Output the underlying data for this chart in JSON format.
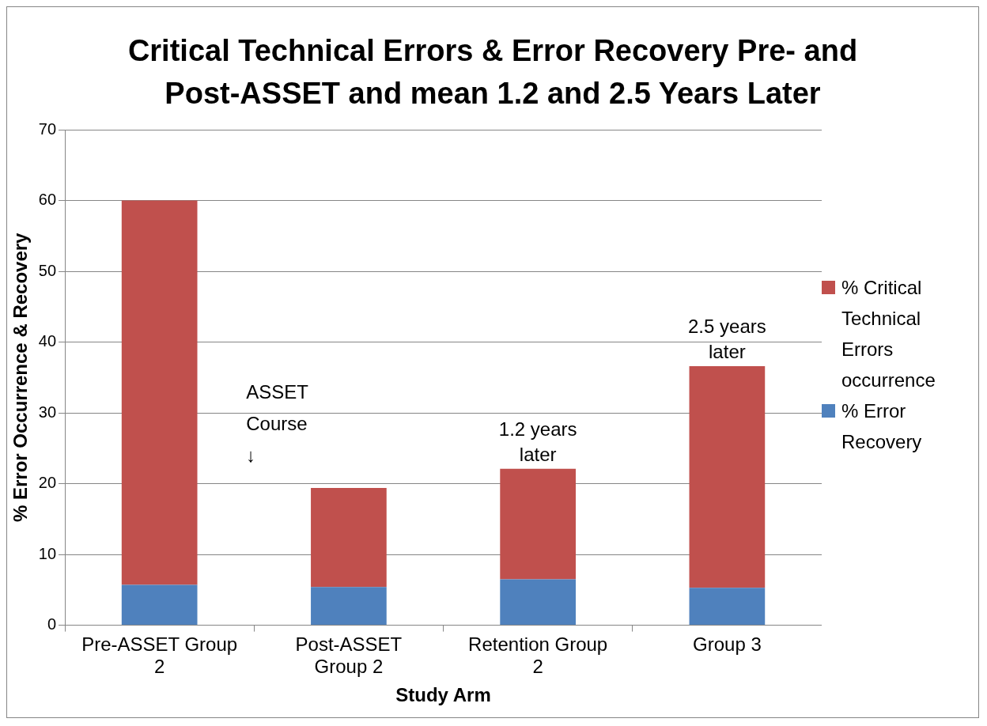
{
  "chart_data": {
    "type": "bar",
    "title": "Critical Technical Errors & Error Recovery Pre- and Post-ASSET and mean 1.2 and 2.5 Years Later",
    "xlabel": "Study Arm",
    "ylabel": "% Error Occurrence & Recovery",
    "categories": [
      "Pre-ASSET Group 2",
      "Post-ASSET Group 2",
      "Retention Group 2",
      "Group 3"
    ],
    "stacked": true,
    "series": [
      {
        "name": "% Error Recovery",
        "color": "#4f81bd",
        "values": [
          5.7,
          5.4,
          6.5,
          5.3
        ]
      },
      {
        "name": "% Critical Technical Errors occurrence",
        "color": "#c0504d",
        "values": [
          54.3,
          14.0,
          15.6,
          31.3
        ]
      }
    ],
    "ylim": [
      0,
      70
    ],
    "yticks": [
      0,
      10,
      20,
      30,
      40,
      50,
      60,
      70
    ],
    "grid": "y",
    "legend": "right",
    "annotations": [
      "ASSET Course ↓",
      {
        "text": "1.2 years later",
        "x": "Retention Group 2",
        "y": 22.1
      },
      {
        "text": "2.5 years later",
        "x": "Group 3",
        "y": 36.6
      }
    ]
  }
}
